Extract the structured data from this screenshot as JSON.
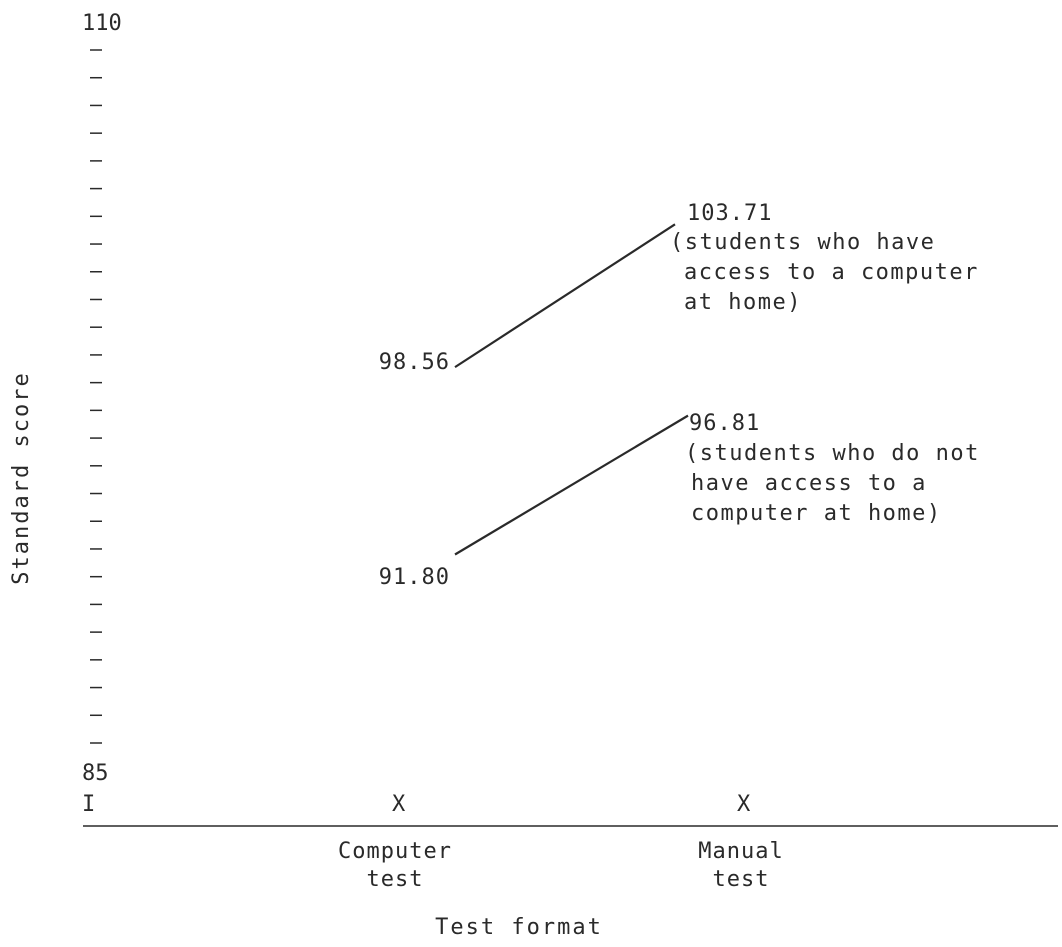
{
  "chart_data": {
    "type": "line",
    "title": "",
    "xlabel": "Test format",
    "ylabel": "Standard score",
    "ylim": [
      85,
      110
    ],
    "y_tick_labels": [
      "110",
      "85"
    ],
    "y_minor_step": 1,
    "x_axis_markers": [
      "I",
      "X",
      "X"
    ],
    "categories": [
      {
        "lines": [
          "Computer",
          "test"
        ]
      },
      {
        "lines": [
          "Manual",
          "test"
        ]
      }
    ],
    "series": [
      {
        "values": [
          98.56,
          103.71
        ],
        "value_labels": [
          "98.56",
          "103.71"
        ],
        "annotation_lines": [
          "(students who have",
          "access to a computer",
          "at home)"
        ]
      },
      {
        "values": [
          91.8,
          96.81
        ],
        "value_labels": [
          "91.80",
          "96.81"
        ],
        "annotation_lines": [
          "(students who do not",
          "have access to a",
          "computer at home)"
        ]
      }
    ],
    "line_color": "#2a2a2a",
    "grid": false,
    "legend": "none"
  }
}
